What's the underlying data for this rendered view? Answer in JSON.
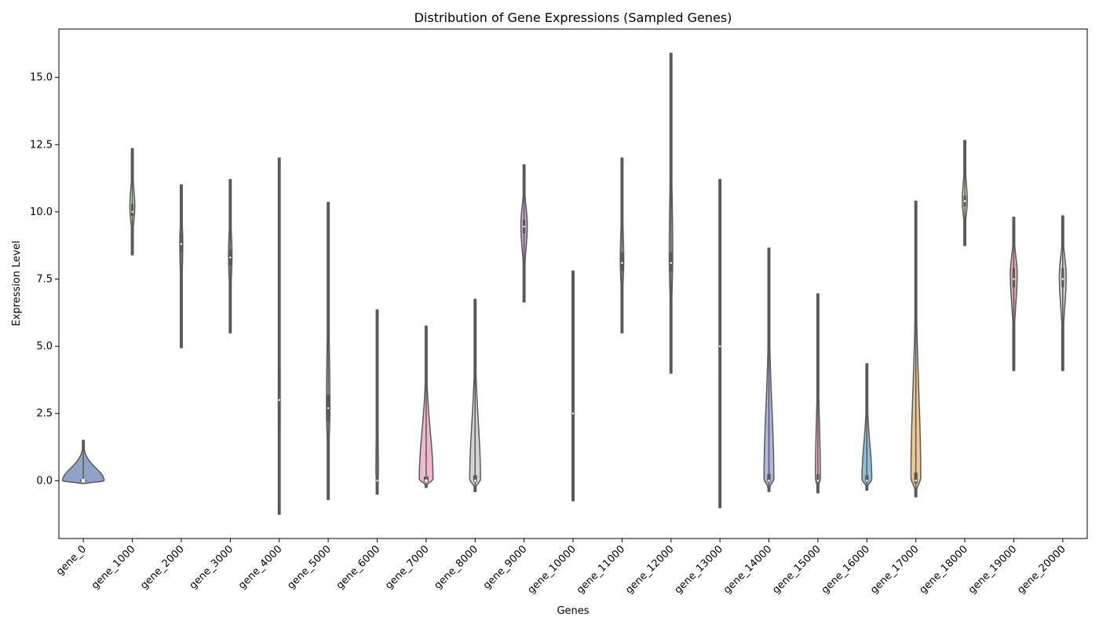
{
  "chart_data": {
    "type": "violin",
    "title": "Distribution of Gene Expressions (Sampled Genes)",
    "xlabel": "Genes",
    "ylabel": "Expression Level",
    "ylim": [
      -2.15,
      16.8
    ],
    "yticks": [
      0.0,
      2.5,
      5.0,
      7.5,
      10.0,
      12.5,
      15.0
    ],
    "ytick_labels": [
      "0.0",
      "2.5",
      "5.0",
      "7.5",
      "10.0",
      "12.5",
      "15.0"
    ],
    "grid": false,
    "legend": "none",
    "categories": [
      "gene_0",
      "gene_1000",
      "gene_2000",
      "gene_3000",
      "gene_4000",
      "gene_5000",
      "gene_6000",
      "gene_7000",
      "gene_8000",
      "gene_9000",
      "gene_10000",
      "gene_11000",
      "gene_12000",
      "gene_13000",
      "gene_14000",
      "gene_15000",
      "gene_16000",
      "gene_17000",
      "gene_18000",
      "gene_19000",
      "gene_20000"
    ],
    "violins": [
      {
        "gene": "gene_0",
        "min": -0.1,
        "max": 1.5,
        "q1": -0.03,
        "median": 0.0,
        "q3": 0.03,
        "peak": 0.0,
        "width": 0.85,
        "color": "#8ea3c7"
      },
      {
        "gene": "gene_1000",
        "min": 8.4,
        "max": 12.35,
        "q1": 9.85,
        "median": 10.0,
        "q3": 10.3,
        "peak": 10.2,
        "width": 0.1,
        "color": "#c4dcb0"
      },
      {
        "gene": "gene_2000",
        "min": 4.95,
        "max": 11.0,
        "q1": 8.5,
        "median": 8.8,
        "q3": 9.2,
        "peak": 8.9,
        "width": 0.06,
        "color": "#e2b0b0"
      },
      {
        "gene": "gene_3000",
        "min": 5.5,
        "max": 11.2,
        "q1": 8.0,
        "median": 8.3,
        "q3": 8.6,
        "peak": 8.4,
        "width": 0.07,
        "color": "#c0b6d8"
      },
      {
        "gene": "gene_4000",
        "min": -1.25,
        "max": 12.0,
        "q1": 2.0,
        "median": 3.0,
        "q3": 4.0,
        "peak": 3.0,
        "width": 0.03,
        "color": "#f0c6a6"
      },
      {
        "gene": "gene_5000",
        "min": -0.7,
        "max": 10.35,
        "q1": 2.2,
        "median": 2.7,
        "q3": 3.2,
        "peak": 2.7,
        "width": 0.07,
        "color": "#b8d7e8"
      },
      {
        "gene": "gene_6000",
        "min": -0.5,
        "max": 6.35,
        "q1": -0.1,
        "median": 0.0,
        "q3": 0.2,
        "peak": 0.3,
        "width": 0.05,
        "color": "#d8cce8"
      },
      {
        "gene": "gene_7000",
        "min": -0.25,
        "max": 5.75,
        "q1": -0.05,
        "median": 0.0,
        "q3": 0.15,
        "peak": 0.05,
        "width": 0.28,
        "color": "#f1b9cf"
      },
      {
        "gene": "gene_8000",
        "min": -0.4,
        "max": 6.75,
        "q1": -0.05,
        "median": 0.0,
        "q3": 0.2,
        "peak": 0.05,
        "width": 0.22,
        "color": "#d3d3d3"
      },
      {
        "gene": "gene_9000",
        "min": 6.65,
        "max": 11.75,
        "q1": 9.2,
        "median": 9.45,
        "q3": 9.7,
        "peak": 9.5,
        "width": 0.13,
        "color": "#c7a6cf"
      },
      {
        "gene": "gene_10000",
        "min": -0.75,
        "max": 7.8,
        "q1": 2.0,
        "median": 2.5,
        "q3": 3.0,
        "peak": 2.5,
        "width": 0.03,
        "color": "#c8c8c8"
      },
      {
        "gene": "gene_11000",
        "min": 5.5,
        "max": 12.0,
        "q1": 7.8,
        "median": 8.1,
        "q3": 8.5,
        "peak": 8.2,
        "width": 0.07,
        "color": "#c4dcb0"
      },
      {
        "gene": "gene_12000",
        "min": 4.0,
        "max": 15.9,
        "q1": 7.8,
        "median": 8.1,
        "q3": 8.5,
        "peak": 8.4,
        "width": 0.07,
        "color": "#e2b0b0"
      },
      {
        "gene": "gene_13000",
        "min": -1.0,
        "max": 11.2,
        "q1": 4.0,
        "median": 5.0,
        "q3": 6.0,
        "peak": 5.0,
        "width": 0.03,
        "color": "#c0b6d8"
      },
      {
        "gene": "gene_14000",
        "min": -0.4,
        "max": 8.65,
        "q1": -0.05,
        "median": 0.0,
        "q3": 0.25,
        "peak": 0.05,
        "width": 0.2,
        "color": "#b0b6dc"
      },
      {
        "gene": "gene_15000",
        "min": -0.45,
        "max": 6.95,
        "q1": -0.05,
        "median": 0.0,
        "q3": 0.25,
        "peak": 0.1,
        "width": 0.1,
        "color": "#f1b9cf"
      },
      {
        "gene": "gene_16000",
        "min": -0.35,
        "max": 4.35,
        "q1": -0.05,
        "median": 0.0,
        "q3": 0.2,
        "peak": 0.05,
        "width": 0.2,
        "color": "#8ebfdc"
      },
      {
        "gene": "gene_17000",
        "min": -0.6,
        "max": 10.4,
        "q1": -0.1,
        "median": 0.0,
        "q3": 0.3,
        "peak": 0.1,
        "width": 0.2,
        "color": "#f0c88e"
      },
      {
        "gene": "gene_18000",
        "min": 8.75,
        "max": 12.65,
        "q1": 10.2,
        "median": 10.4,
        "q3": 10.6,
        "peak": 10.4,
        "width": 0.1,
        "color": "#cfe0a8"
      },
      {
        "gene": "gene_19000",
        "min": 4.1,
        "max": 9.8,
        "q1": 7.2,
        "median": 7.5,
        "q3": 7.9,
        "peak": 7.7,
        "width": 0.14,
        "color": "#e2b0b0"
      },
      {
        "gene": "gene_20000",
        "min": 4.1,
        "max": 9.85,
        "q1": 7.2,
        "median": 7.5,
        "q3": 7.9,
        "peak": 7.6,
        "width": 0.14,
        "color": "#d3d3d3"
      }
    ],
    "outline_color": "#595959"
  }
}
